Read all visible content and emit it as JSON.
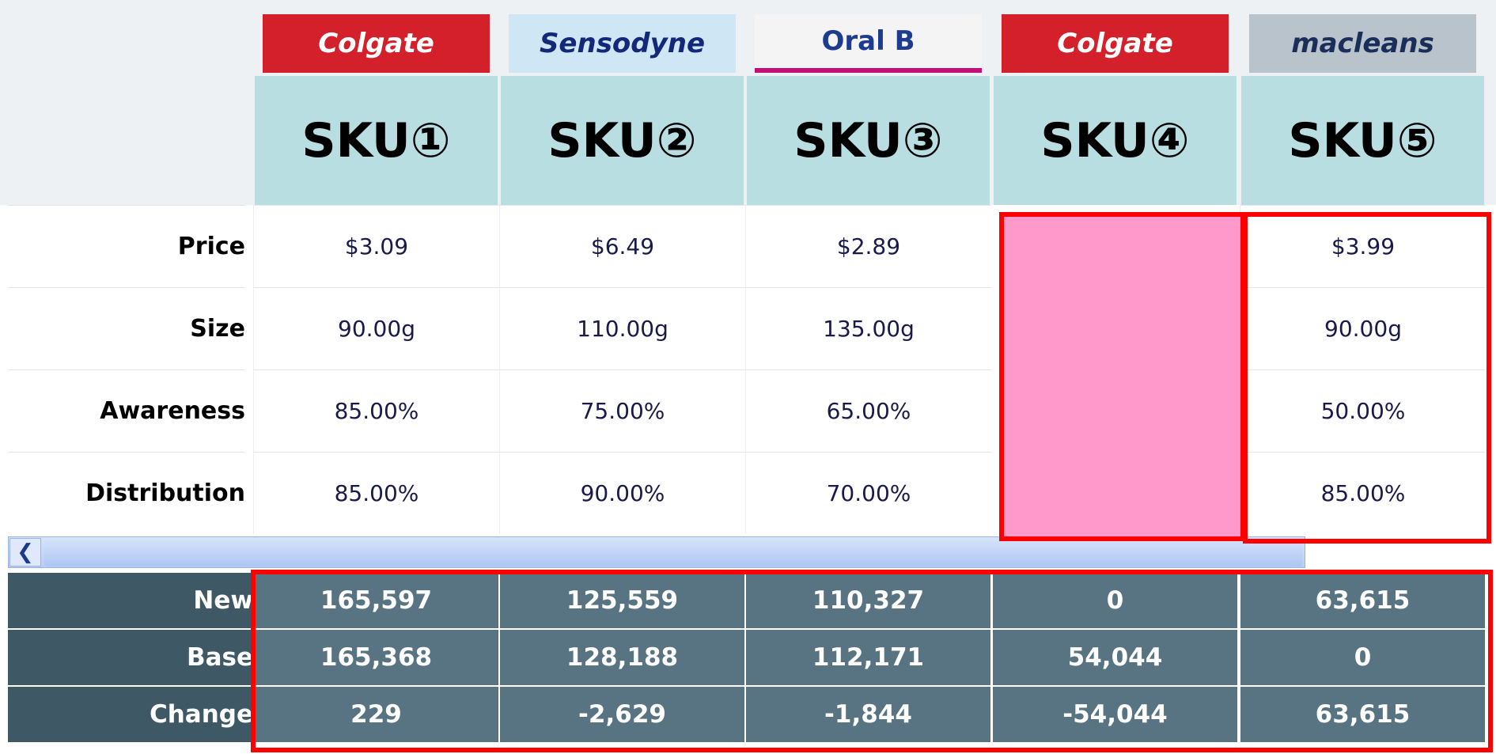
{
  "products": [
    {
      "brand": "Colgate",
      "sku": "SKU①"
    },
    {
      "brand": "Sensodyne",
      "sku": "SKU②"
    },
    {
      "brand": "Oral B",
      "sku": "SKU③"
    },
    {
      "brand": "Colgate",
      "sku": "SKU④"
    },
    {
      "brand": "macleans",
      "sku": "SKU⑤"
    }
  ],
  "attributes": [
    {
      "label": "Price",
      "cells": [
        "$3.09",
        "$6.49",
        "$2.89",
        null,
        "$3.99"
      ]
    },
    {
      "label": "Size",
      "cells": [
        "90.00g",
        "110.00g",
        "135.00g",
        null,
        "90.00g"
      ]
    },
    {
      "label": "Awareness",
      "cells": [
        "85.00%",
        "75.00%",
        "65.00%",
        null,
        "50.00%"
      ]
    },
    {
      "label": "Distribution",
      "cells": [
        "85.00%",
        "90.00%",
        "70.00%",
        null,
        "85.00%"
      ]
    }
  ],
  "results": [
    {
      "label": "New",
      "cells": [
        "165,597",
        "125,559",
        "110,327",
        "0",
        "63,615"
      ]
    },
    {
      "label": "Base",
      "cells": [
        "165,368",
        "128,188",
        "112,171",
        "54,044",
        "0"
      ]
    },
    {
      "label": "Change",
      "cells": [
        "229",
        "-2,629",
        "-1,844",
        "-54,044",
        "63,615"
      ]
    }
  ]
}
